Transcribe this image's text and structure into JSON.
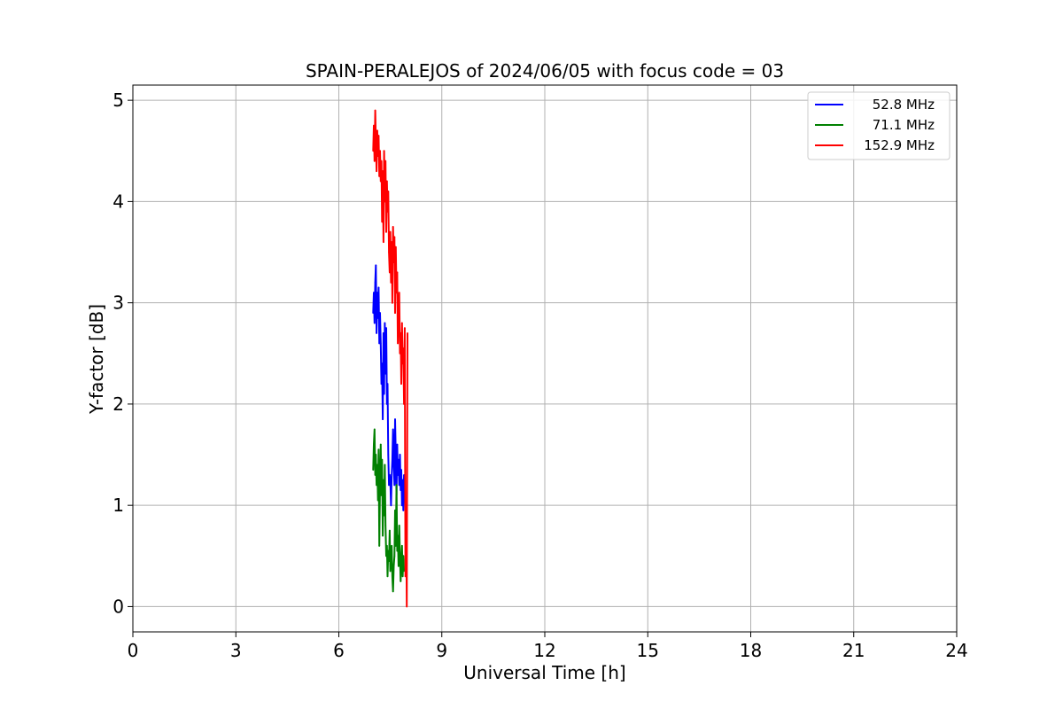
{
  "chart_data": {
    "type": "line",
    "title": "SPAIN-PERALEJOS of 2024/06/05 with focus code = 03",
    "xlabel": "Universal Time [h]",
    "ylabel": "Y-factor [dB]",
    "xlim": [
      0,
      24
    ],
    "ylim": [
      -0.25,
      5.15
    ],
    "xticks": [
      0,
      3,
      6,
      9,
      12,
      15,
      18,
      21,
      24
    ],
    "yticks": [
      0,
      1,
      2,
      3,
      4,
      5
    ],
    "grid": true,
    "legend_position": "top-right",
    "series": [
      {
        "name": "52.8 MHz",
        "color": "#0000ff",
        "x": [
          7.0,
          7.02,
          7.04,
          7.06,
          7.08,
          7.1,
          7.12,
          7.14,
          7.16,
          7.18,
          7.2,
          7.22,
          7.24,
          7.26,
          7.28,
          7.3,
          7.32,
          7.34,
          7.36,
          7.38,
          7.4,
          7.42,
          7.44,
          7.46,
          7.48,
          7.5,
          7.52,
          7.54,
          7.56,
          7.58,
          7.6,
          7.62,
          7.64,
          7.66,
          7.68,
          7.7,
          7.72,
          7.74,
          7.76,
          7.78,
          7.8,
          7.82,
          7.84,
          7.86,
          7.88,
          7.9
        ],
        "y": [
          2.9,
          3.1,
          2.8,
          3.2,
          3.37,
          2.7,
          3.1,
          2.85,
          3.15,
          2.6,
          2.9,
          2.6,
          2.2,
          2.4,
          1.85,
          2.7,
          2.1,
          2.8,
          2.3,
          2.75,
          2.0,
          2.2,
          1.5,
          1.2,
          1.3,
          1.25,
          1.0,
          1.3,
          1.45,
          1.75,
          1.4,
          1.2,
          1.85,
          1.5,
          1.1,
          1.6,
          1.3,
          1.45,
          1.2,
          1.5,
          1.15,
          1.35,
          1.0,
          1.25,
          0.95,
          1.3
        ]
      },
      {
        "name": "71.1 MHz",
        "color": "#008000",
        "x": [
          7.0,
          7.02,
          7.04,
          7.06,
          7.08,
          7.1,
          7.12,
          7.14,
          7.16,
          7.18,
          7.2,
          7.22,
          7.24,
          7.26,
          7.28,
          7.3,
          7.32,
          7.34,
          7.36,
          7.38,
          7.4,
          7.42,
          7.44,
          7.46,
          7.48,
          7.5,
          7.52,
          7.54,
          7.56,
          7.58,
          7.6,
          7.62,
          7.64,
          7.66,
          7.68,
          7.7,
          7.72,
          7.74,
          7.76,
          7.78,
          7.8,
          7.82,
          7.84,
          7.86,
          7.88,
          7.9
        ],
        "y": [
          1.35,
          1.6,
          1.75,
          1.3,
          1.5,
          1.2,
          1.4,
          1.05,
          1.55,
          0.6,
          1.2,
          1.6,
          1.1,
          1.45,
          0.7,
          1.25,
          0.9,
          1.4,
          0.8,
          0.5,
          0.6,
          0.3,
          0.55,
          0.45,
          0.75,
          0.35,
          0.5,
          0.6,
          0.3,
          0.15,
          0.4,
          0.5,
          0.95,
          0.6,
          1.2,
          0.55,
          0.7,
          0.4,
          0.8,
          0.5,
          0.25,
          0.45,
          0.6,
          0.3,
          0.5,
          0.35
        ]
      },
      {
        "name": "152.9 MHz",
        "color": "#ff0000",
        "x": [
          7.0,
          7.02,
          7.04,
          7.06,
          7.08,
          7.1,
          7.12,
          7.14,
          7.16,
          7.18,
          7.2,
          7.22,
          7.24,
          7.26,
          7.28,
          7.3,
          7.32,
          7.34,
          7.36,
          7.38,
          7.4,
          7.42,
          7.44,
          7.46,
          7.48,
          7.5,
          7.52,
          7.54,
          7.56,
          7.58,
          7.6,
          7.62,
          7.64,
          7.66,
          7.68,
          7.7,
          7.72,
          7.74,
          7.76,
          7.78,
          7.8,
          7.82,
          7.84,
          7.86,
          7.88,
          7.9,
          7.92,
          7.94,
          7.96,
          7.98,
          8.0
        ],
        "y": [
          4.5,
          4.75,
          4.4,
          4.9,
          4.6,
          4.3,
          4.7,
          4.45,
          4.65,
          4.25,
          4.5,
          4.2,
          4.4,
          3.8,
          4.3,
          3.6,
          4.5,
          4.0,
          4.4,
          3.7,
          4.2,
          3.9,
          4.1,
          3.5,
          3.3,
          3.7,
          3.2,
          3.6,
          3.0,
          3.75,
          3.4,
          3.65,
          2.9,
          3.55,
          3.1,
          3.3,
          2.6,
          2.9,
          3.1,
          2.5,
          2.7,
          2.2,
          2.8,
          2.4,
          2.55,
          2.0,
          2.75,
          0.3,
          1.0,
          0.0,
          2.7
        ]
      }
    ]
  }
}
